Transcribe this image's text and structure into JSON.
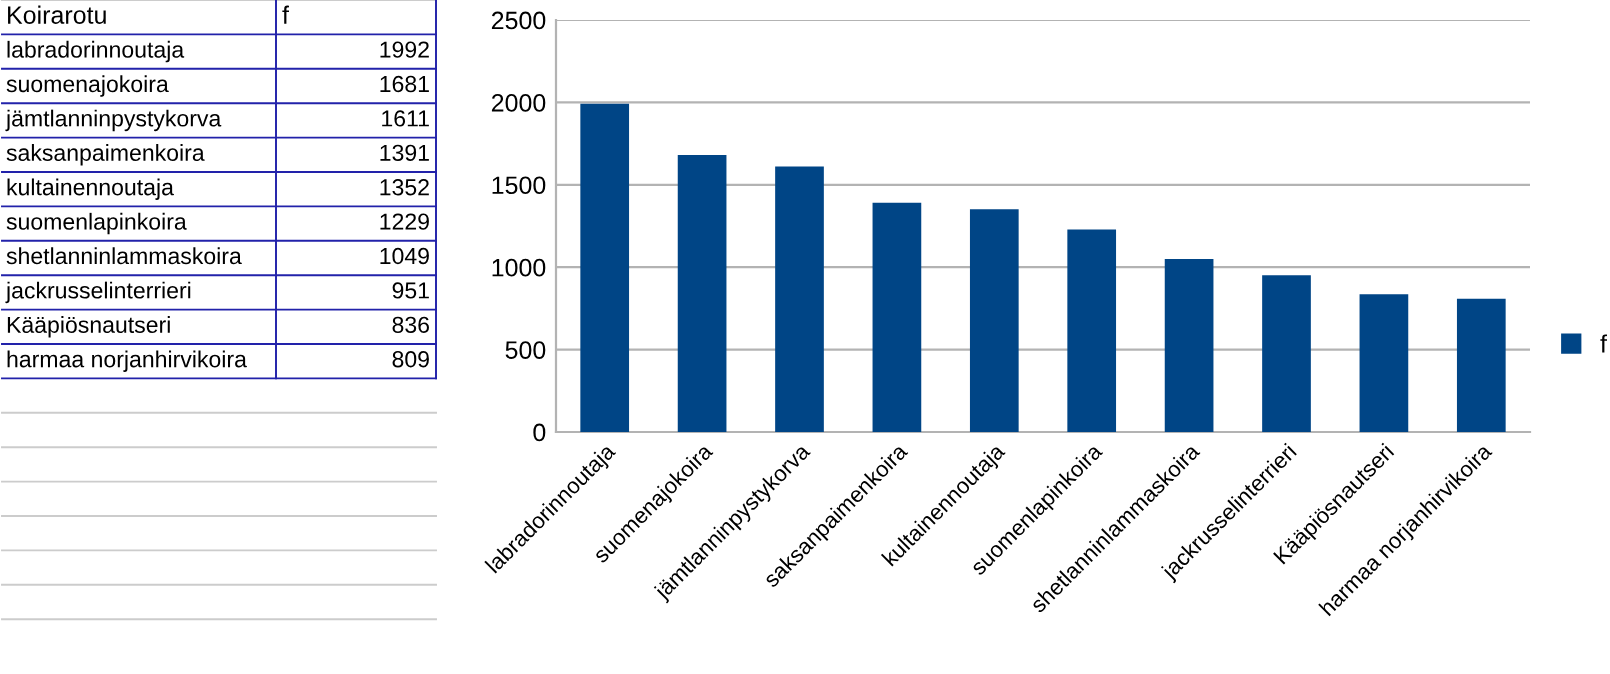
{
  "chart_data": [
    {
      "type": "other",
      "annotations": [
        "Koirarotu"
      ],
      "categories": [
        "labradorinnoutaja",
        "suomenajokoira",
        "jämtlanninpystykorva",
        "saksanpaimenkoira",
        "kultainennoutaja",
        "suomenlapinkoira",
        "shetlanninlammaskoira",
        "jackrusselinterrieri",
        "Kääpiösnautseri",
        "harmaa norjanhirvikoira"
      ],
      "series": [
        {
          "name": "f",
          "values": [
            1992,
            1681,
            1611,
            1391,
            1352,
            1229,
            1049,
            951,
            836,
            809
          ],
          "value_labels": [
            "1992",
            "1681",
            "1611",
            "1391",
            "1352",
            "1229",
            "1049",
            "951",
            "836",
            "809"
          ]
        }
      ]
    },
    {
      "type": "bar",
      "categories": [
        "labradorinnoutaja",
        "suomenajokoira",
        "jämtlanninpystykorva",
        "saksanpaimenkoira",
        "kultainennoutaja",
        "suomenlapinkoira",
        "shetlanninlammaskoira",
        "jackrusselinterrieri",
        "Kääpiösnautseri",
        "harmaa norjanhirvikoira"
      ],
      "series": [
        {
          "name": "f",
          "color": "#004586",
          "values": [
            1992,
            1681,
            1611,
            1391,
            1352,
            1229,
            1049,
            951,
            836,
            809
          ]
        }
      ],
      "ylim": [
        0,
        2500
      ],
      "yticks": [
        0,
        500,
        1000,
        1500,
        2000,
        2500
      ],
      "grid": "y",
      "legend": "right"
    }
  ]
}
